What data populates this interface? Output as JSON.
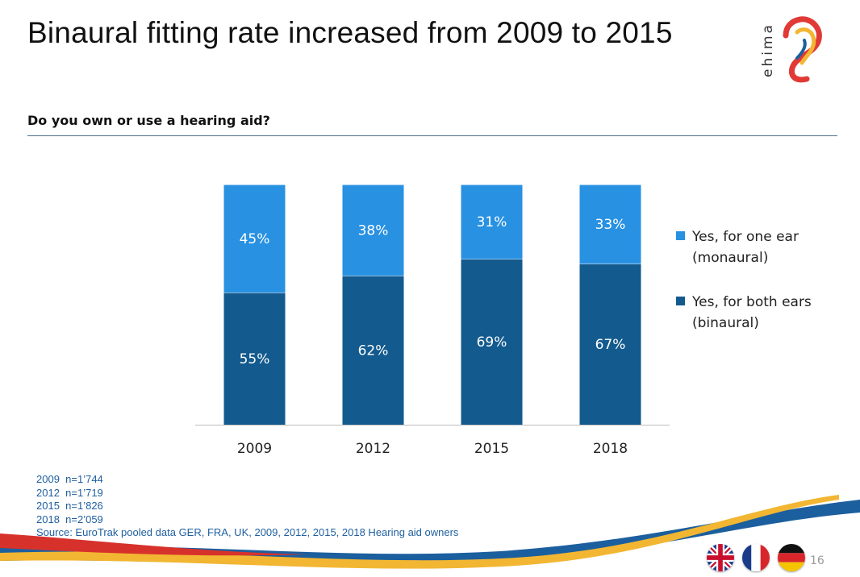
{
  "slide": {
    "title": "Binaural fitting rate increased from 2009 to 2015",
    "subtitle": "Do you own or use a hearing aid?",
    "logo_text": "ehima",
    "page_number": "16"
  },
  "colors": {
    "binaural": "#135a8e",
    "monaural": "#2891e2",
    "rule": "#4a6f8f",
    "note_text": "#1f5fa0",
    "swoosh_red": "#d7312c",
    "swoosh_yellow": "#f2b632",
    "swoosh_blue": "#1c5f9e"
  },
  "chart_data": {
    "type": "bar",
    "stacked": true,
    "categories": [
      "2009",
      "2012",
      "2015",
      "2018"
    ],
    "series": [
      {
        "name": "Yes, for both ears (binaural)",
        "values": [
          55,
          62,
          69,
          67
        ],
        "labels": [
          "55%",
          "62%",
          "69%",
          "67%"
        ],
        "color": "#135a8e"
      },
      {
        "name": "Yes, for one ear (monaural)",
        "values": [
          45,
          38,
          31,
          33
        ],
        "labels": [
          "45%",
          "38%",
          "31%",
          "33%"
        ],
        "color": "#2891e2"
      }
    ],
    "ylim": [
      0,
      100
    ],
    "unit": "%",
    "legend_position": "right",
    "grid": false
  },
  "legend": [
    {
      "line1": "Yes, for one ear",
      "line2": "(monaural)",
      "color": "#2891e2"
    },
    {
      "line1": "Yes, for both ears",
      "line2": "(binaural)",
      "color": "#135a8e"
    }
  ],
  "notes": [
    "2009  n=1’744",
    "2012  n=1’719",
    "2015  n=1’826",
    "2018  n=2’059",
    "Source: EuroTrak pooled data GER, FRA, UK, 2009, 2012, 2015, 2018 Hearing aid owners"
  ],
  "flags": [
    {
      "icon": "uk-flag-icon"
    },
    {
      "icon": "france-flag-icon"
    },
    {
      "icon": "germany-flag-icon"
    }
  ]
}
